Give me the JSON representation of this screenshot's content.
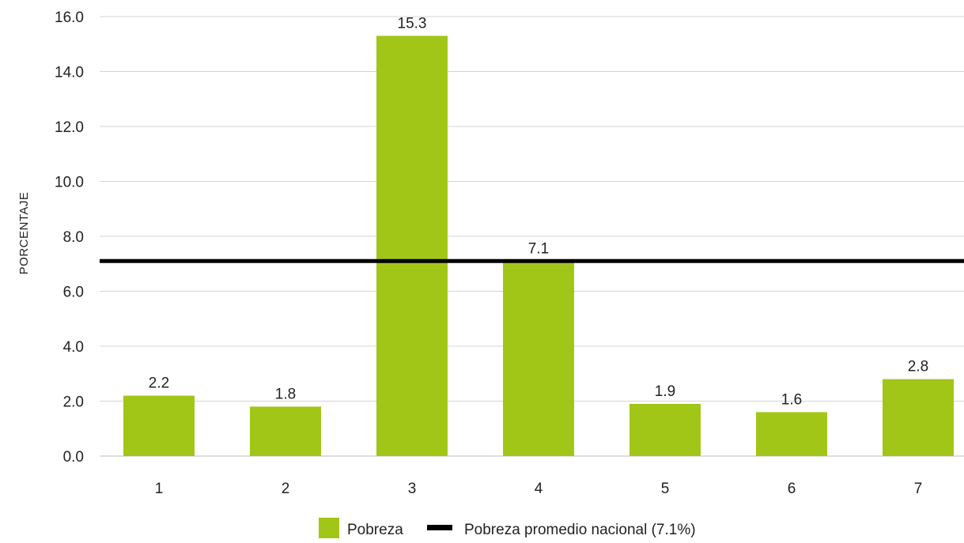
{
  "chart_data": {
    "type": "bar",
    "title": "",
    "xlabel": "",
    "ylabel": "PORCENTAJE",
    "categories": [
      "1",
      "2",
      "3",
      "4",
      "5",
      "6",
      "7"
    ],
    "series": [
      {
        "name": "Pobreza",
        "values": [
          2.2,
          1.8,
          15.3,
          7.1,
          1.9,
          1.6,
          2.8
        ]
      }
    ],
    "data_labels": [
      "2.2",
      "1.8",
      "15.3",
      "7.1",
      "1.9",
      "1.6",
      "2.8"
    ],
    "reference_line": {
      "name": "Pobreza promedio nacional (7.1%)",
      "value": 7.1
    },
    "ylim": [
      0,
      16
    ],
    "yticks": [
      "0.0",
      "2.0",
      "4.0",
      "6.0",
      "8.0",
      "10.0",
      "12.0",
      "14.0",
      "16.0"
    ],
    "grid": true,
    "legend_position": "bottom-center",
    "colors": {
      "bar": "#a2c617",
      "reference_line": "#000000",
      "grid": "#d4d4d4"
    }
  }
}
